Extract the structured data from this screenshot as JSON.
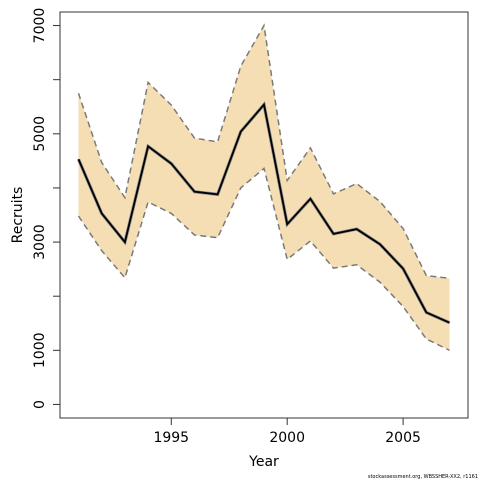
{
  "chart_data": {
    "type": "area",
    "title": "",
    "xlabel": "Year",
    "ylabel": "Recruits",
    "xlim": [
      1990.2,
      2007.8
    ],
    "ylim": [
      -250,
      7250
    ],
    "x_ticks": [
      1995,
      2000,
      2005
    ],
    "y_ticks": [
      0,
      1000,
      3000,
      5000,
      7000
    ],
    "y_minor_ticks": [
      2000,
      4000,
      6000
    ],
    "grid": false,
    "legend": "none",
    "x": [
      1991,
      1992,
      1993,
      1994,
      1995,
      1996,
      1997,
      1998,
      1999,
      2000,
      2001,
      2002,
      2003,
      2004,
      2005,
      2006,
      2007
    ],
    "series": [
      {
        "role": "estimate",
        "values": [
          4530,
          3530,
          3000,
          4770,
          4450,
          3930,
          3880,
          5040,
          5540,
          3330,
          3800,
          3150,
          3240,
          2960,
          2510,
          1700,
          1510
        ]
      },
      {
        "role": "lower",
        "values": [
          3480,
          2840,
          2340,
          3740,
          3530,
          3130,
          3080,
          4000,
          4360,
          2680,
          3020,
          2520,
          2580,
          2260,
          1810,
          1210,
          1000
        ]
      },
      {
        "role": "upper",
        "values": [
          5750,
          4470,
          3820,
          5950,
          5530,
          4920,
          4850,
          6250,
          7000,
          4140,
          4740,
          3890,
          4080,
          3750,
          3250,
          2380,
          2330
        ]
      }
    ],
    "colors": {
      "band": "#f5deb3",
      "band_edge": "#7a7a7a",
      "estimate": "#000000"
    },
    "footnote": "stockassessment.org, WBSSHER-XX2, r1161"
  }
}
